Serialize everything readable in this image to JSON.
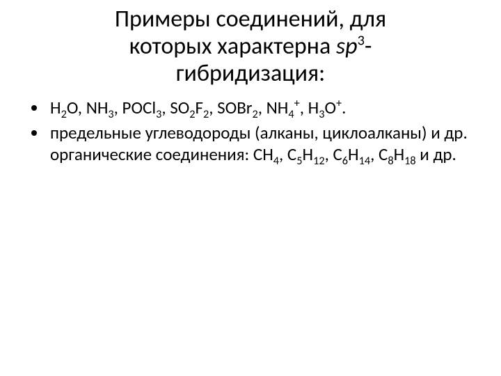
{
  "title": {
    "line1": "Примеры соединений, для",
    "line2_before": "которых характерна ",
    "line2_sp": "sp",
    "line2_exp": "3",
    "line2_dash": "-",
    "line3": "гибридизация:"
  },
  "bullets": {
    "b1": {
      "f1_base": "H",
      "f1_sub": "2",
      "f1_tail": "O",
      "sep1": ", ",
      "f2_base": "NH",
      "f2_sub": "3",
      "sep2": ", ",
      "f3_base": "POCl",
      "f3_sub": "3",
      "sep3": ", ",
      "f4_a": "SO",
      "f4_a_sub": "2",
      "f4_b": "F",
      "f4_b_sub": "2",
      "sep4": ", ",
      "f5_a": "SOBr",
      "f5_a_sub": "2",
      "sep5": ", ",
      "f6_a": "NH",
      "f6_a_sub": "4",
      "f6_charge": "+",
      "sep6": ", ",
      "f7_a": "H",
      "f7_a_sub": "3",
      "f7_b": "O",
      "f7_charge": "+",
      "tail": "."
    },
    "b2": {
      "t1": "предельные углеводороды (алканы, циклоалканы) и др. органические соединения: ",
      "f1_a": "CH",
      "f1_sub": "4",
      "s1": ", ",
      "f2_a": "C",
      "f2_a_sub": "5",
      "f2_b": "H",
      "f2_b_sub": "12",
      "s2": ", ",
      "f3_a": "C",
      "f3_a_sub": "6",
      "f3_b": "H",
      "f3_b_sub": "14",
      "s3": ", ",
      "f4_a": "C",
      "f4_a_sub": "8",
      "f4_b": "H",
      "f4_b_sub": "18",
      "t2": " и др."
    }
  }
}
